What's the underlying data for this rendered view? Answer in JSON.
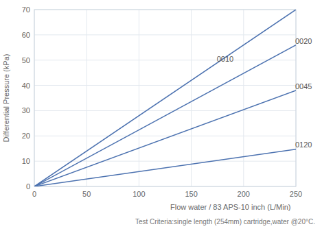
{
  "chart_data": {
    "type": "line",
    "xlabel": "Flow water / 83 APS-10 inch (L/Min)",
    "subtitle": "Test Criteria:single length (254mm) cartridge,water @20°C.",
    "ylabel": "Differential Pressure (kPa)",
    "x": [
      0,
      250
    ],
    "series": [
      {
        "values": [
          0,
          70
        ]
      },
      {
        "values": [
          0,
          56
        ]
      },
      {
        "values": [
          0,
          38
        ]
      },
      {
        "values": [
          0,
          14.75
        ]
      }
    ],
    "annotations": [
      {
        "text": "0010",
        "x": 173,
        "y": 48.44
      },
      {
        "text": "0020",
        "x": 248,
        "y": 55.552
      },
      {
        "text": "0045",
        "x": 248,
        "y": 37.696
      },
      {
        "text": "0120",
        "x": 248,
        "y": 14.632
      }
    ],
    "color": "#4c72b0",
    "xlim": [
      0,
      250
    ],
    "ylim": [
      0,
      70
    ],
    "xticks": [
      0,
      50,
      100,
      150,
      200,
      250
    ],
    "yticks": [
      0,
      10,
      20,
      30,
      40,
      50,
      60,
      70
    ],
    "grid": true
  }
}
